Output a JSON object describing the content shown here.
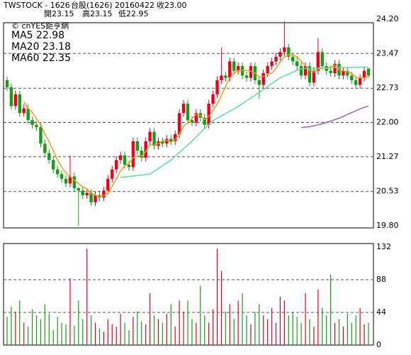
{
  "header": {
    "title": "TWSTOCK - 1626",
    "name": "台股(1626)",
    "date": "20160422",
    "close_label": "收23.00",
    "open_label": "開23.15",
    "high_label": "高23.15",
    "low_label": "低22.95",
    "watermark": "© cnYES鉅亨網"
  },
  "chart_data": [
    {
      "type": "candlestick",
      "up_color": "#e8001c",
      "down_color": "#1a9a1a",
      "grid": true,
      "ylim": [
        19.8,
        24.2
      ],
      "yticks": [
        {
          "value": 19.8,
          "label": "19.80"
        },
        20.53,
        21.27,
        {
          "value": 22,
          "label": "22.00"
        },
        22.73,
        23.47,
        {
          "value": 24.2,
          "label": "24.20"
        }
      ],
      "open": [
        22.9,
        22.75,
        22.35,
        22.6,
        22.2,
        22.3,
        22.05,
        21.95,
        21.9,
        21.55,
        21.35,
        21.2,
        21.0,
        20.9,
        20.8,
        20.7,
        20.85,
        20.6,
        20.55,
        20.45,
        20.5,
        20.3,
        20.45,
        20.4,
        20.55,
        20.8,
        21.0,
        21.2,
        21.3,
        21.1,
        21.05,
        21.6,
        21.4,
        21.25,
        21.6,
        21.8,
        21.5,
        21.6,
        21.55,
        21.65,
        21.6,
        21.75,
        22.2,
        22.4,
        22.05,
        22.0,
        22.2,
        22.1,
        21.95,
        22.4,
        22.6,
        22.9,
        23.0,
        22.95,
        23.3,
        23.1,
        23.2,
        23.0,
        22.95,
        23.2,
        22.9,
        22.8,
        23.05,
        23.2,
        23.3,
        23.4,
        23.5,
        23.6,
        23.4,
        23.3,
        23.2,
        23.0,
        23.2,
        22.85,
        23.1,
        23.5,
        23.2,
        23.1,
        23.05,
        23.25,
        23.0,
        23.1,
        23.0,
        22.9,
        22.8,
        22.95,
        23.15
      ],
      "high": [
        22.98,
        22.83,
        22.68,
        22.68,
        22.38,
        22.38,
        22.13,
        22.03,
        21.98,
        21.63,
        21.43,
        21.28,
        21.08,
        20.98,
        20.88,
        21.3,
        20.93,
        20.63,
        20.63,
        20.58,
        20.58,
        20.53,
        20.53,
        20.63,
        20.88,
        21.08,
        21.28,
        21.38,
        21.38,
        21.18,
        21.68,
        21.68,
        21.48,
        21.68,
        21.88,
        21.88,
        21.68,
        21.68,
        21.73,
        21.73,
        21.83,
        22.28,
        22.48,
        22.48,
        22.13,
        22.28,
        22.28,
        22.18,
        22.48,
        22.68,
        22.98,
        23.6,
        23.08,
        23.38,
        23.38,
        23.28,
        23.28,
        23.08,
        23.28,
        23.28,
        22.98,
        23.13,
        23.28,
        23.38,
        23.48,
        23.58,
        24.15,
        23.68,
        23.48,
        23.38,
        23.28,
        23.28,
        23.28,
        23.18,
        23.8,
        23.58,
        23.28,
        23.18,
        23.33,
        23.33,
        23.18,
        23.18,
        23.08,
        22.98,
        23.03,
        23.18,
        23.15
      ],
      "low": [
        22.67,
        22.27,
        22.27,
        22.12,
        22.12,
        21.97,
        21.87,
        21.82,
        21.47,
        21.27,
        21.12,
        20.92,
        20.82,
        20.72,
        20.62,
        20.62,
        20.52,
        19.8,
        20.37,
        20.37,
        20.22,
        20.22,
        20.32,
        20.32,
        20.47,
        20.72,
        20.92,
        21.12,
        21.02,
        20.97,
        20.97,
        21.32,
        21.17,
        21.17,
        21.52,
        21.42,
        21.42,
        21.47,
        21.47,
        21.52,
        21.52,
        21.67,
        22.12,
        21.97,
        21.92,
        21.92,
        22.02,
        21.87,
        21.87,
        22.32,
        22.52,
        22.82,
        22.87,
        22.87,
        23.02,
        23.02,
        22.92,
        22.87,
        22.87,
        22.82,
        22.5,
        22.72,
        22.97,
        23.12,
        23.22,
        23.32,
        23.42,
        23.32,
        23.22,
        23.12,
        22.92,
        22.92,
        22.77,
        22.77,
        23.02,
        23.12,
        23.02,
        22.97,
        22.97,
        22.92,
        22.92,
        22.92,
        22.82,
        22.72,
        22.72,
        22.87,
        22.95
      ],
      "close": [
        22.75,
        22.35,
        22.6,
        22.2,
        22.3,
        22.05,
        21.95,
        21.9,
        21.55,
        21.35,
        21.2,
        21.0,
        20.9,
        20.8,
        20.7,
        20.85,
        20.6,
        20.55,
        20.45,
        20.5,
        20.3,
        20.45,
        20.4,
        20.55,
        20.8,
        21.0,
        21.2,
        21.3,
        21.1,
        21.05,
        21.6,
        21.4,
        21.25,
        21.6,
        21.8,
        21.5,
        21.6,
        21.55,
        21.65,
        21.6,
        21.75,
        22.2,
        22.4,
        22.05,
        22.0,
        22.2,
        22.1,
        21.95,
        22.4,
        22.6,
        22.9,
        23.0,
        22.95,
        23.3,
        23.1,
        23.2,
        23.0,
        22.95,
        23.2,
        22.9,
        22.8,
        23.05,
        23.2,
        23.3,
        23.4,
        23.5,
        23.6,
        23.4,
        23.3,
        23.2,
        23.0,
        23.2,
        22.85,
        23.1,
        23.5,
        23.2,
        23.1,
        23.05,
        23.25,
        23.0,
        23.1,
        23.0,
        22.9,
        22.8,
        22.95,
        23.1,
        23.0
      ],
      "series": [
        {
          "name": "MA5 22.98",
          "color": "#f39a1e",
          "values": [
            null,
            null,
            null,
            null,
            22.44,
            22.3,
            22.22,
            22.08,
            21.95,
            21.76,
            21.59,
            21.4,
            21.2,
            21.05,
            20.92,
            20.85,
            20.77,
            20.7,
            20.63,
            20.59,
            20.48,
            20.45,
            20.42,
            20.44,
            20.5,
            20.64,
            20.79,
            20.97,
            21.08,
            21.13,
            21.25,
            21.29,
            21.28,
            21.38,
            21.53,
            21.51,
            21.55,
            21.61,
            21.62,
            21.58,
            21.63,
            21.75,
            21.92,
            22.0,
            22.08,
            22.17,
            22.15,
            22.06,
            22.13,
            22.25,
            22.39,
            22.57,
            22.77,
            22.95,
            23.05,
            23.11,
            23.11,
            23.11,
            23.09,
            23.05,
            22.97,
            22.98,
            23.03,
            23.05,
            23.15,
            23.29,
            23.4,
            23.44,
            23.44,
            23.4,
            23.3,
            23.22,
            23.11,
            23.07,
            23.13,
            23.17,
            23.15,
            23.19,
            23.22,
            23.12,
            23.1,
            23.08,
            23.05,
            22.96,
            22.95,
            22.95,
            22.98
          ]
        },
        {
          "name": "MA20 23.18",
          "color": "#5fdc9c",
          "values": [
            null,
            null,
            null,
            null,
            null,
            null,
            null,
            null,
            null,
            null,
            null,
            null,
            null,
            null,
            null,
            null,
            null,
            null,
            null,
            null,
            null,
            null,
            null,
            null,
            null,
            null,
            null,
            20.83,
            20.84,
            20.85,
            20.86,
            20.87,
            20.88,
            20.89,
            20.9,
            20.96,
            21.02,
            21.08,
            21.14,
            21.2,
            21.28,
            21.36,
            21.44,
            21.52,
            21.6,
            21.69,
            21.78,
            21.87,
            21.96,
            22.04,
            22.09,
            22.14,
            22.19,
            22.24,
            22.29,
            22.34,
            22.4,
            22.46,
            22.52,
            22.58,
            22.64,
            22.7,
            22.76,
            22.83,
            22.89,
            22.95,
            22.99,
            23.03,
            23.07,
            23.11,
            23.14,
            23.15,
            23.15,
            23.15,
            23.16,
            23.16,
            23.16,
            23.16,
            23.17,
            23.17,
            23.17,
            23.17,
            23.17,
            23.18,
            23.18,
            23.18,
            23.18
          ]
        },
        {
          "name": "MA60 22.35",
          "color": "#9a5fd0",
          "values": [
            null,
            null,
            null,
            null,
            null,
            null,
            null,
            null,
            null,
            null,
            null,
            null,
            null,
            null,
            null,
            null,
            null,
            null,
            null,
            null,
            null,
            null,
            null,
            null,
            null,
            null,
            null,
            null,
            null,
            null,
            null,
            null,
            null,
            null,
            null,
            null,
            null,
            null,
            null,
            null,
            null,
            null,
            null,
            null,
            null,
            null,
            null,
            null,
            null,
            null,
            null,
            null,
            null,
            null,
            null,
            null,
            null,
            null,
            null,
            null,
            null,
            null,
            null,
            null,
            null,
            null,
            null,
            null,
            null,
            null,
            21.89,
            21.9,
            21.91,
            21.93,
            21.95,
            21.97,
            22.0,
            22.03,
            22.06,
            22.09,
            22.13,
            22.17,
            22.21,
            22.25,
            22.29,
            22.32,
            22.35
          ]
        }
      ]
    },
    {
      "type": "bar",
      "grid": true,
      "ylim": [
        0,
        132
      ],
      "yticks": [
        0,
        44,
        88,
        132
      ],
      "values": [
        38,
        52,
        45,
        60,
        30,
        25,
        48,
        40,
        35,
        55,
        42,
        20,
        38,
        30,
        28,
        90,
        26,
        60,
        35,
        130,
        40,
        30,
        22,
        18,
        35,
        28,
        25,
        42,
        30,
        20,
        38,
        45,
        32,
        28,
        70,
        40,
        35,
        30,
        42,
        55,
        25,
        60,
        45,
        60,
        35,
        30,
        80,
        40,
        30,
        48,
        130,
        100,
        45,
        55,
        35,
        60,
        70,
        40,
        28,
        45,
        55,
        40,
        35,
        50,
        30,
        65,
        60,
        40,
        45,
        38,
        30,
        70,
        35,
        25,
        75,
        50,
        40,
        95,
        30,
        35,
        25,
        42,
        30,
        40,
        50,
        28,
        30
      ]
    }
  ]
}
